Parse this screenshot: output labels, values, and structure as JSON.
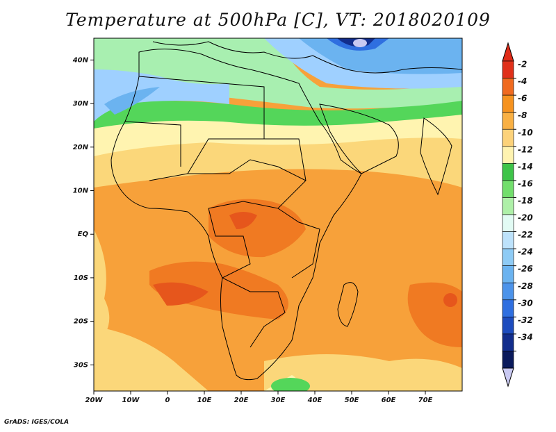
{
  "title": "Temperature at 500hPa [C], VT: 2018020109",
  "credit": "GrADS: IGES/COLA",
  "map": {
    "lon_range": [
      -20,
      80
    ],
    "lat_range": [
      -36,
      45
    ],
    "lon_ticks": [
      "20W",
      "10W",
      "0",
      "10E",
      "20E",
      "30E",
      "40E",
      "50E",
      "60E",
      "70E"
    ],
    "lat_ticks": [
      "40N",
      "30N",
      "20N",
      "10N",
      "EQ",
      "10S",
      "20S",
      "30S"
    ],
    "fields": {
      "north_cold": "#4a8fe0",
      "mid_blue": "#9fd0ff",
      "green_band": "#54d65a",
      "light_green": "#a8efb0",
      "pale_yellow": "#fff4b0",
      "yellow": "#fbd77a",
      "orange": "#f7a13a",
      "deep_orange": "#f07a22",
      "red_orange": "#e6561c"
    }
  },
  "colorbar": {
    "labels": [
      "-2",
      "-4",
      "-6",
      "-8",
      "-10",
      "-12",
      "-14",
      "-16",
      "-18",
      "-20",
      "-22",
      "-24",
      "-26",
      "-28",
      "-30",
      "-32",
      "-34"
    ],
    "colors": [
      "#e0301a",
      "#f06a1f",
      "#f6921e",
      "#f9b043",
      "#fcd27a",
      "#fff3b0",
      "#3ec449",
      "#72de6c",
      "#aef0a8",
      "#e2fbf4",
      "#bde2fb",
      "#8ecbf5",
      "#6bb3f0",
      "#4c93ea",
      "#2f6fe0",
      "#1d4cbe",
      "#122d8c",
      "#0a1a5c"
    ],
    "under_color": "#c9c9f2",
    "over_color": "#e02b18"
  }
}
